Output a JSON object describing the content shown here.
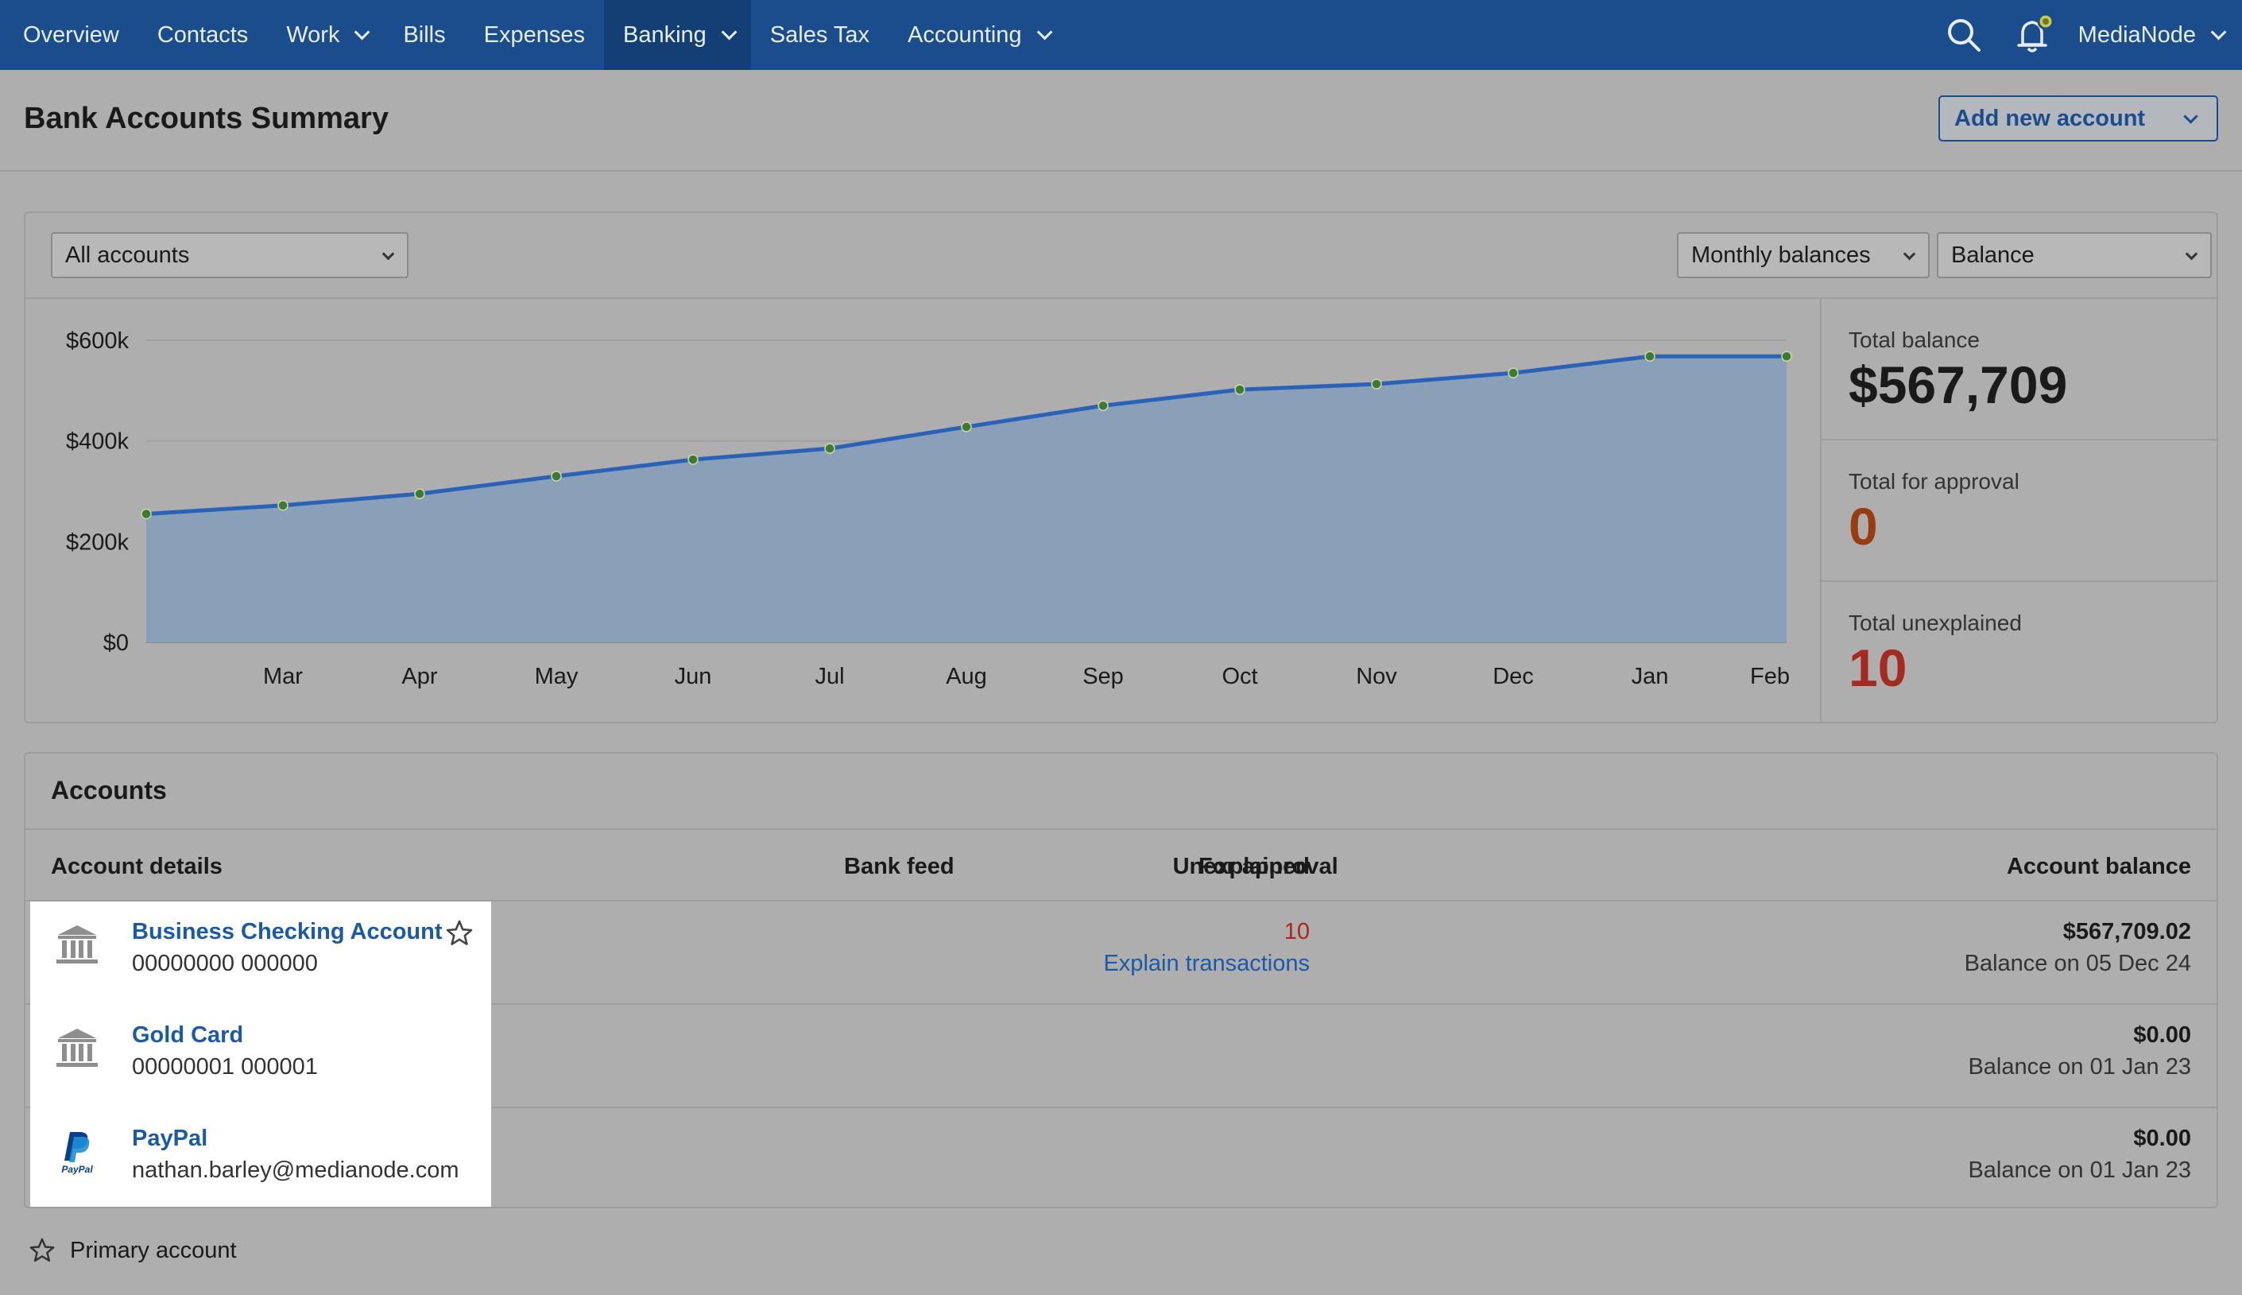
{
  "nav": {
    "items": [
      {
        "label": "Overview",
        "dropdown": false,
        "active": false
      },
      {
        "label": "Contacts",
        "dropdown": false,
        "active": false
      },
      {
        "label": "Work",
        "dropdown": true,
        "active": false
      },
      {
        "label": "Bills",
        "dropdown": false,
        "active": false
      },
      {
        "label": "Expenses",
        "dropdown": false,
        "active": false
      },
      {
        "label": "Banking",
        "dropdown": true,
        "active": true
      },
      {
        "label": "Sales Tax",
        "dropdown": false,
        "active": false
      },
      {
        "label": "Accounting",
        "dropdown": true,
        "active": false
      }
    ],
    "user": "MediaNode",
    "icons": [
      "search-icon",
      "bell-icon"
    ]
  },
  "header": {
    "title": "Bank Accounts Summary",
    "add_account_label": "Add new account"
  },
  "filters": {
    "accounts": "All accounts",
    "period": "Monthly balances",
    "metric": "Balance"
  },
  "chart_data": {
    "type": "area",
    "categories": [
      "",
      "Mar",
      "Apr",
      "May",
      "Jun",
      "Jul",
      "Aug",
      "Sep",
      "Oct",
      "Nov",
      "Dec",
      "Jan",
      "Feb"
    ],
    "tick_labels": [
      "Mar",
      "Apr",
      "May",
      "Jun",
      "Jul",
      "Aug",
      "Sep",
      "Oct",
      "Nov",
      "Dec",
      "Jan",
      "Feb"
    ],
    "values": [
      255000,
      272000,
      295000,
      330000,
      363000,
      385000,
      428000,
      470000,
      502000,
      513000,
      535000,
      568000,
      568000
    ],
    "ylim": [
      0,
      600000
    ],
    "yticks": [
      0,
      200000,
      400000,
      600000
    ],
    "ytick_labels": [
      "$0",
      "$200k",
      "$400k",
      "$600k"
    ],
    "grid": true,
    "colors": {
      "line": "#2a62b8",
      "fill": "#8aa0b8",
      "marker": "#3f7a34"
    }
  },
  "stats": {
    "total_balance_label": "Total balance",
    "total_balance": "$567,709",
    "approval_label": "Total for approval",
    "approval": "0",
    "unexplained_label": "Total unexplained",
    "unexplained": "10",
    "colors": {
      "approval": "#9a3c12",
      "unexplained": "#a52a1f"
    }
  },
  "accounts": {
    "title": "Accounts",
    "columns": {
      "details": "Account details",
      "bank_feed": "Bank feed",
      "approval": "For approval",
      "unexplained": "Unexplained",
      "balance": "Account balance"
    },
    "rows": [
      {
        "icon": "bank-icon",
        "name": "Business Checking Account",
        "sub": "00000000 000000",
        "primary": true,
        "unexplained": "10",
        "explain": "Explain transactions",
        "balance": "$567,709.02",
        "balance_date": "Balance on 05 Dec 24"
      },
      {
        "icon": "bank-icon",
        "name": "Gold Card",
        "sub": "00000001 000001",
        "primary": false,
        "unexplained": "",
        "explain": "",
        "balance": "$0.00",
        "balance_date": "Balance on 01 Jan 23"
      },
      {
        "icon": "paypal-icon",
        "name": "PayPal",
        "sub": "nathan.barley@medianode.com",
        "primary": false,
        "unexplained": "",
        "explain": "",
        "balance": "$0.00",
        "balance_date": "Balance on 01 Jan 23"
      }
    ],
    "paypal_logo_text": "PayPal"
  },
  "legend": {
    "primary_label": "Primary account"
  }
}
